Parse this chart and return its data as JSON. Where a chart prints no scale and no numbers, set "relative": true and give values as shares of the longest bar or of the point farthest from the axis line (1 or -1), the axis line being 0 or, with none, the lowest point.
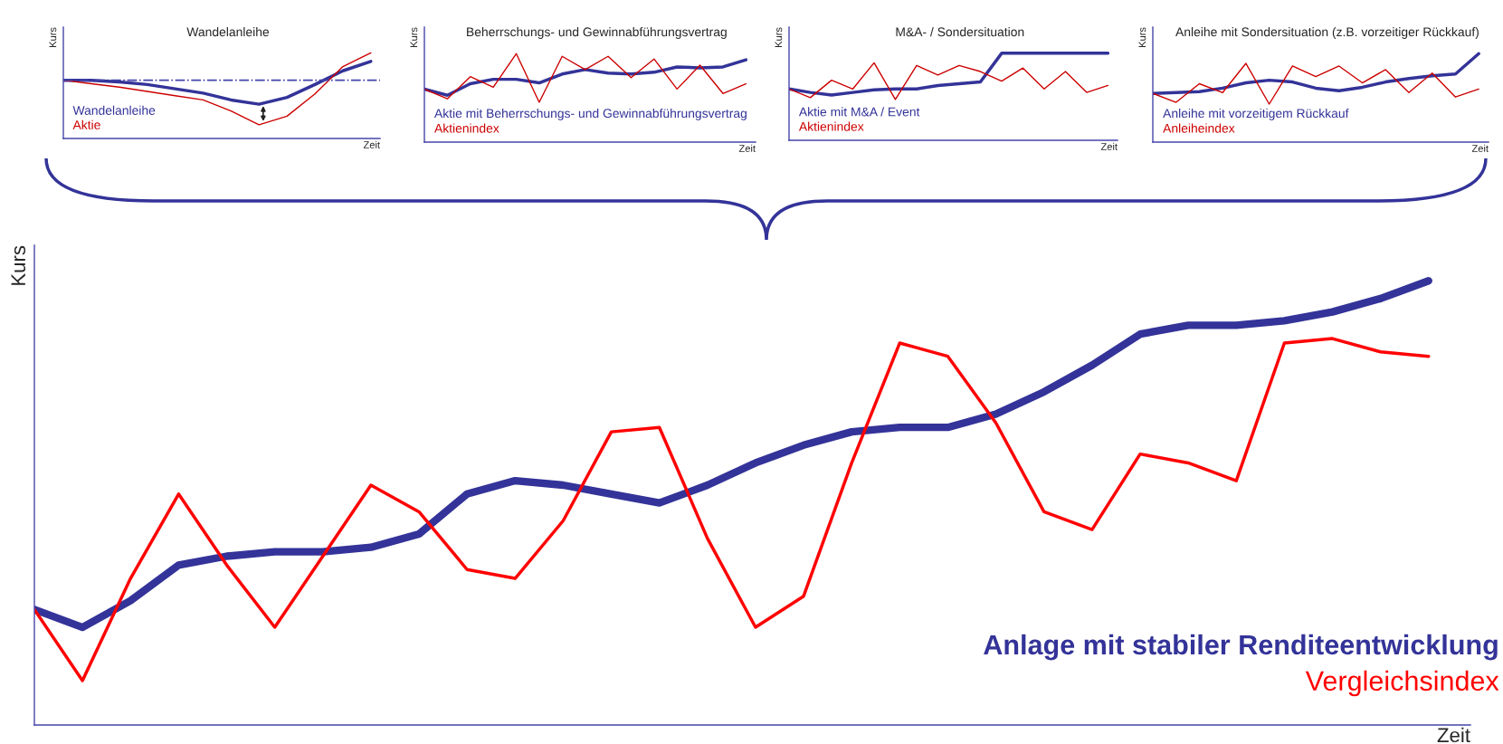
{
  "chart_data": [
    {
      "type": "line",
      "title": "Wandelanleihe",
      "xlabel": "Zeit",
      "ylabel": "Kurs",
      "relative": true,
      "legend": "bottom left",
      "categories": [
        null,
        null,
        null,
        null,
        null,
        null,
        null,
        null,
        null,
        null,
        null,
        null
      ],
      "series": [
        {
          "name": "Wandelanleihe",
          "color": "#333399",
          "values": [
            0.68,
            0.68,
            0.66,
            0.63,
            0.58,
            0.53,
            0.45,
            0.4,
            0.48,
            0.63,
            0.79,
            0.9
          ]
        },
        {
          "name": "Aktie",
          "color": "#cc0000",
          "values": [
            0.68,
            0.64,
            0.6,
            0.55,
            0.5,
            0.45,
            0.32,
            0.16,
            0.26,
            0.52,
            0.84,
            1
          ]
        }
      ],
      "ref_lines": [
        {
          "axis": "y",
          "value": 0.68,
          "color": "#4444aa",
          "line_style": "dashdot"
        }
      ]
    },
    {
      "type": "line",
      "title": "Beherrschungs- und Gewinnabführungsvertrag",
      "xlabel": "Zeit",
      "ylabel": "Kurs",
      "relative": true,
      "legend": "bottom left",
      "categories": [
        null,
        null,
        null,
        null,
        null,
        null,
        null,
        null,
        null,
        null,
        null,
        null,
        null,
        null,
        null
      ],
      "series": [
        {
          "name": "Aktie mit Beherrschungs- und Gewinnabführungsvertrag",
          "color": "#333399",
          "values": [
            0.6,
            0.53,
            0.66,
            0.71,
            0.71,
            0.67,
            0.77,
            0.82,
            0.78,
            0.77,
            0.79,
            0.85,
            0.84,
            0.85,
            0.93
          ]
        },
        {
          "name": "Aktienindex",
          "color": "#cc0000",
          "values": [
            0.6,
            0.49,
            0.74,
            0.62,
            1,
            0.45,
            0.97,
            0.82,
            0.97,
            0.73,
            0.94,
            0.6,
            0.87,
            0.55,
            0.66
          ]
        }
      ]
    },
    {
      "type": "line",
      "title": "M&A- / Sondersituation",
      "xlabel": "Zeit",
      "ylabel": "Kurs",
      "relative": true,
      "legend": "bottom left",
      "categories": [
        null,
        null,
        null,
        null,
        null,
        null,
        null,
        null,
        null,
        null,
        null,
        null,
        null,
        null,
        null,
        null
      ],
      "series": [
        {
          "name": "Aktie mit M&A / Event",
          "color": "#333399",
          "values": [
            0.59,
            0.55,
            0.52,
            0.55,
            0.58,
            0.59,
            0.59,
            0.63,
            0.65,
            0.67,
            1,
            1,
            1,
            1,
            1,
            1
          ]
        },
        {
          "name": "Aktienindex",
          "color": "#cc0000",
          "values": [
            0.59,
            0.49,
            0.69,
            0.59,
            0.89,
            0.47,
            0.86,
            0.75,
            0.86,
            0.79,
            0.68,
            0.83,
            0.59,
            0.79,
            0.55,
            0.63
          ]
        }
      ]
    },
    {
      "type": "line",
      "title": "Anleihe mit Sondersituation (z.B. vorzeitiger Rückkauf)",
      "xlabel": "Zeit",
      "ylabel": "Kurs",
      "relative": true,
      "legend": "bottom left",
      "categories": [
        null,
        null,
        null,
        null,
        null,
        null,
        null,
        null,
        null,
        null,
        null,
        null,
        null,
        null,
        null
      ],
      "series": [
        {
          "name": "Anleihe mit vorzeitigem Rückkauf",
          "color": "#333399",
          "values": [
            0.55,
            0.56,
            0.57,
            0.61,
            0.67,
            0.7,
            0.68,
            0.61,
            0.58,
            0.62,
            0.68,
            0.72,
            0.75,
            0.77,
            1
          ]
        },
        {
          "name": "Anleiheindex",
          "color": "#cc0000",
          "values": [
            0.55,
            0.45,
            0.66,
            0.56,
            0.89,
            0.43,
            0.86,
            0.74,
            0.86,
            0.67,
            0.82,
            0.56,
            0.78,
            0.51,
            0.6
          ]
        }
      ]
    },
    {
      "type": "line",
      "xlabel": "Zeit",
      "ylabel": "Kurs",
      "relative": true,
      "legend": "bottom right",
      "categories": [
        null,
        null,
        null,
        null,
        null,
        null,
        null,
        null,
        null,
        null,
        null,
        null,
        null,
        null,
        null,
        null,
        null,
        null,
        null,
        null,
        null,
        null,
        null,
        null,
        null,
        null,
        null,
        null,
        null,
        null
      ],
      "series": [
        {
          "name": "Anlage mit stabiler Renditeentwicklung",
          "color": "#333399",
          "values": [
            0.26,
            0.22,
            0.28,
            0.36,
            0.38,
            0.39,
            0.39,
            0.4,
            0.43,
            0.52,
            0.55,
            0.54,
            0.52,
            0.5,
            0.54,
            0.59,
            0.63,
            0.66,
            0.67,
            0.67,
            0.7,
            0.75,
            0.81,
            0.88,
            0.9,
            0.9,
            0.91,
            0.93,
            0.96,
            1
          ]
        },
        {
          "name": "Vergleichsindex",
          "color": "#ff0000",
          "values": [
            0.26,
            0.1,
            0.33,
            0.52,
            0.36,
            0.22,
            0.38,
            0.54,
            0.48,
            0.35,
            0.33,
            0.46,
            0.66,
            0.67,
            0.42,
            0.22,
            0.29,
            0.59,
            0.86,
            0.83,
            0.68,
            0.48,
            0.44,
            0.61,
            0.59,
            0.55,
            0.86,
            0.87,
            0.84,
            0.83
          ]
        }
      ]
    }
  ]
}
